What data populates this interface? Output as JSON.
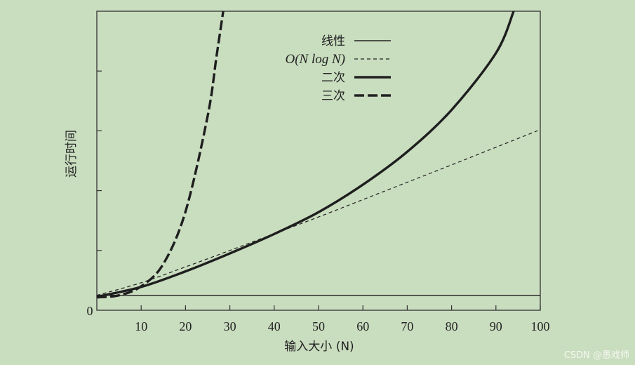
{
  "chart_data": {
    "type": "line",
    "title": "",
    "xlabel": "输入大小 (N)",
    "ylabel": "运行时间",
    "xlim": [
      0,
      100
    ],
    "ylim": [
      0,
      100
    ],
    "x_ticks": [
      10,
      20,
      30,
      40,
      50,
      60,
      70,
      80,
      90,
      100
    ],
    "y_tick_labels": [
      "0"
    ],
    "legend_position": "top-right",
    "series": [
      {
        "name": "线性",
        "style": "solid-thin",
        "x": [
          0,
          100
        ],
        "y": [
          5,
          5
        ]
      },
      {
        "name": "O(N log N)",
        "style": "dashed-thin",
        "x": [
          0,
          10,
          20,
          30,
          40,
          50,
          60,
          70,
          80,
          90,
          100
        ],
        "y": [
          5,
          9.2,
          14.5,
          20,
          25.6,
          31.2,
          37,
          42.8,
          48.6,
          54.5,
          60.4
        ]
      },
      {
        "name": "二次",
        "style": "solid-thick",
        "x": [
          0,
          10,
          20,
          30,
          40,
          50,
          60,
          70,
          80,
          90,
          94
        ],
        "y": [
          4.5,
          7.8,
          13,
          19,
          25.5,
          32.8,
          42,
          53,
          67,
          86,
          100
        ]
      },
      {
        "name": "三次",
        "style": "dashed-thick",
        "x": [
          0,
          5,
          10,
          15,
          20,
          25,
          27,
          28.5
        ],
        "y": [
          4.3,
          5,
          8,
          15.5,
          33,
          65,
          85,
          100
        ]
      }
    ]
  },
  "legend": {
    "linear": "线性",
    "nlogn_prefix": "O",
    "nlogn_mid": "(N log N",
    "nlogn_suffix": ")",
    "quadratic": "二次",
    "cubic": "三次"
  },
  "watermark": "CSDN @愚戏师"
}
